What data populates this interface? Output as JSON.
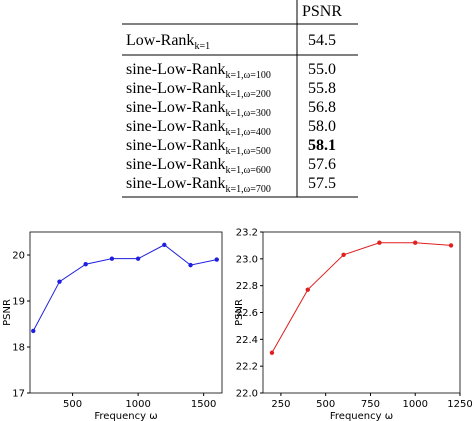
{
  "table": {
    "header": "PSNR",
    "rows": [
      {
        "name": "Low-Rank",
        "sub": "k=1",
        "value": "54.5"
      },
      {
        "name": "sine-Low-Rank",
        "sub": "k=1,ω=100",
        "value": "55.0"
      },
      {
        "name": "sine-Low-Rank",
        "sub": "k=1,ω=200",
        "value": "55.8"
      },
      {
        "name": "sine-Low-Rank",
        "sub": "k=1,ω=300",
        "value": "56.8"
      },
      {
        "name": "sine-Low-Rank",
        "sub": "k=1,ω=400",
        "value": "58.0"
      },
      {
        "name": "sine-Low-Rank",
        "sub": "k=1,ω=500",
        "value": "58.1"
      },
      {
        "name": "sine-Low-Rank",
        "sub": "k=1,ω=600",
        "value": "57.6"
      },
      {
        "name": "sine-Low-Rank",
        "sub": "k=1,ω=700",
        "value": "57.5"
      }
    ]
  },
  "chart_data": [
    {
      "type": "line",
      "x_label": "Frequency ω",
      "y_label": "PSNR",
      "x": [
        200,
        400,
        600,
        800,
        1000,
        1200,
        1400,
        1600
      ],
      "series": [
        {
          "color": "#1f1fe0",
          "values": [
            18.35,
            19.42,
            19.8,
            19.92,
            19.92,
            20.22,
            19.78,
            19.9
          ]
        }
      ],
      "xlim": [
        175,
        1640
      ],
      "xticks": [
        500,
        1000,
        1500
      ],
      "ylim": [
        17,
        20.5
      ],
      "yticks": [
        17,
        18,
        19,
        20
      ]
    },
    {
      "type": "line",
      "x_label": "Frequency ω",
      "y_label": "PSNR",
      "x": [
        200,
        400,
        600,
        800,
        1000,
        1200
      ],
      "series": [
        {
          "color": "#e01f1f",
          "values": [
            22.3,
            22.77,
            23.03,
            23.12,
            23.12,
            23.1
          ]
        }
      ],
      "xlim": [
        150,
        1250
      ],
      "xticks": [
        250,
        500,
        750,
        1000,
        1250
      ],
      "ylim": [
        22.0,
        23.2
      ],
      "yticks": [
        {
          "value": 22.0,
          "label": "22.0"
        },
        22.2,
        22.4,
        22.6,
        22.8,
        {
          "value": 23.0,
          "label": "23.0"
        },
        23.2
      ]
    }
  ]
}
